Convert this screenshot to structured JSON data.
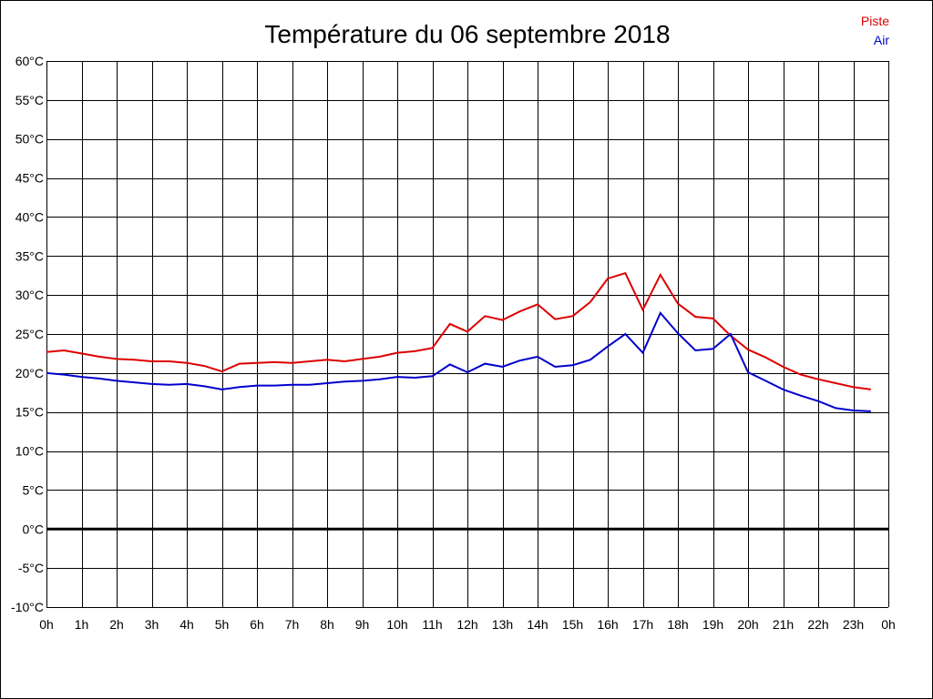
{
  "chart_data": {
    "type": "line",
    "title": "Température du 06 septembre 2018",
    "xlabel": "",
    "ylabel": "",
    "x_ticks": [
      "0h",
      "1h",
      "2h",
      "3h",
      "4h",
      "5h",
      "6h",
      "7h",
      "8h",
      "9h",
      "10h",
      "11h",
      "12h",
      "13h",
      "14h",
      "15h",
      "16h",
      "17h",
      "18h",
      "19h",
      "20h",
      "21h",
      "22h",
      "23h",
      "0h"
    ],
    "y_ticks": [
      "60°C",
      "55°C",
      "50°C",
      "45°C",
      "40°C",
      "35°C",
      "30°C",
      "25°C",
      "20°C",
      "15°C",
      "10°C",
      "5°C",
      "0°C",
      "-5°C",
      "-10°C"
    ],
    "xlim": [
      0,
      24
    ],
    "ylim": [
      -10,
      60
    ],
    "grid": true,
    "legend_position": "top-right",
    "series": [
      {
        "name": "Piste",
        "color": "#dd0000",
        "x": [
          0,
          0.5,
          1,
          1.5,
          2,
          2.5,
          3,
          3.5,
          4,
          4.5,
          5,
          5.5,
          6,
          6.5,
          7,
          7.5,
          8,
          8.5,
          9,
          9.5,
          10,
          10.5,
          11,
          11.5,
          12,
          12.5,
          13,
          13.5,
          14,
          14.5,
          15,
          15.5,
          16,
          16.5,
          17,
          17.5,
          18,
          18.5,
          19,
          19.5,
          20,
          20.5,
          21,
          21.5,
          22,
          22.5,
          23,
          23.5
        ],
        "values": [
          22.7,
          22.9,
          22.5,
          22.1,
          21.8,
          21.7,
          21.5,
          21.5,
          21.3,
          20.9,
          20.2,
          21.2,
          21.3,
          21.4,
          21.3,
          21.5,
          21.7,
          21.5,
          21.8,
          22.1,
          22.6,
          22.8,
          23.2,
          26.3,
          25.3,
          27.3,
          26.8,
          27.9,
          28.8,
          26.9,
          27.3,
          29.1,
          32.1,
          32.8,
          28.1,
          32.6,
          28.9,
          27.2,
          27.0,
          24.8,
          23.0,
          22.0,
          20.8,
          19.8,
          19.2,
          18.7,
          18.2,
          17.9
        ]
      },
      {
        "name": "Air",
        "color": "#0000cc",
        "x": [
          0,
          0.5,
          1,
          1.5,
          2,
          2.5,
          3,
          3.5,
          4,
          4.5,
          5,
          5.5,
          6,
          6.5,
          7,
          7.5,
          8,
          8.5,
          9,
          9.5,
          10,
          10.5,
          11,
          11.5,
          12,
          12.5,
          13,
          13.5,
          14,
          14.5,
          15,
          15.5,
          16,
          16.5,
          17,
          17.5,
          18,
          18.5,
          19,
          19.5,
          20,
          20.5,
          21,
          21.5,
          22,
          22.5,
          23,
          23.5
        ],
        "values": [
          20.0,
          19.8,
          19.5,
          19.3,
          19.0,
          18.8,
          18.6,
          18.5,
          18.6,
          18.3,
          17.9,
          18.2,
          18.4,
          18.4,
          18.5,
          18.5,
          18.7,
          18.9,
          19.0,
          19.2,
          19.5,
          19.4,
          19.6,
          21.1,
          20.1,
          21.2,
          20.8,
          21.6,
          22.1,
          20.8,
          21.0,
          21.7,
          23.4,
          25.0,
          22.6,
          27.7,
          25.1,
          22.9,
          23.1,
          25.0,
          20.1,
          19.0,
          17.9,
          17.1,
          16.4,
          15.5,
          15.2,
          15.1
        ]
      }
    ],
    "reference_line": {
      "value": 0,
      "color": "#000000"
    }
  }
}
